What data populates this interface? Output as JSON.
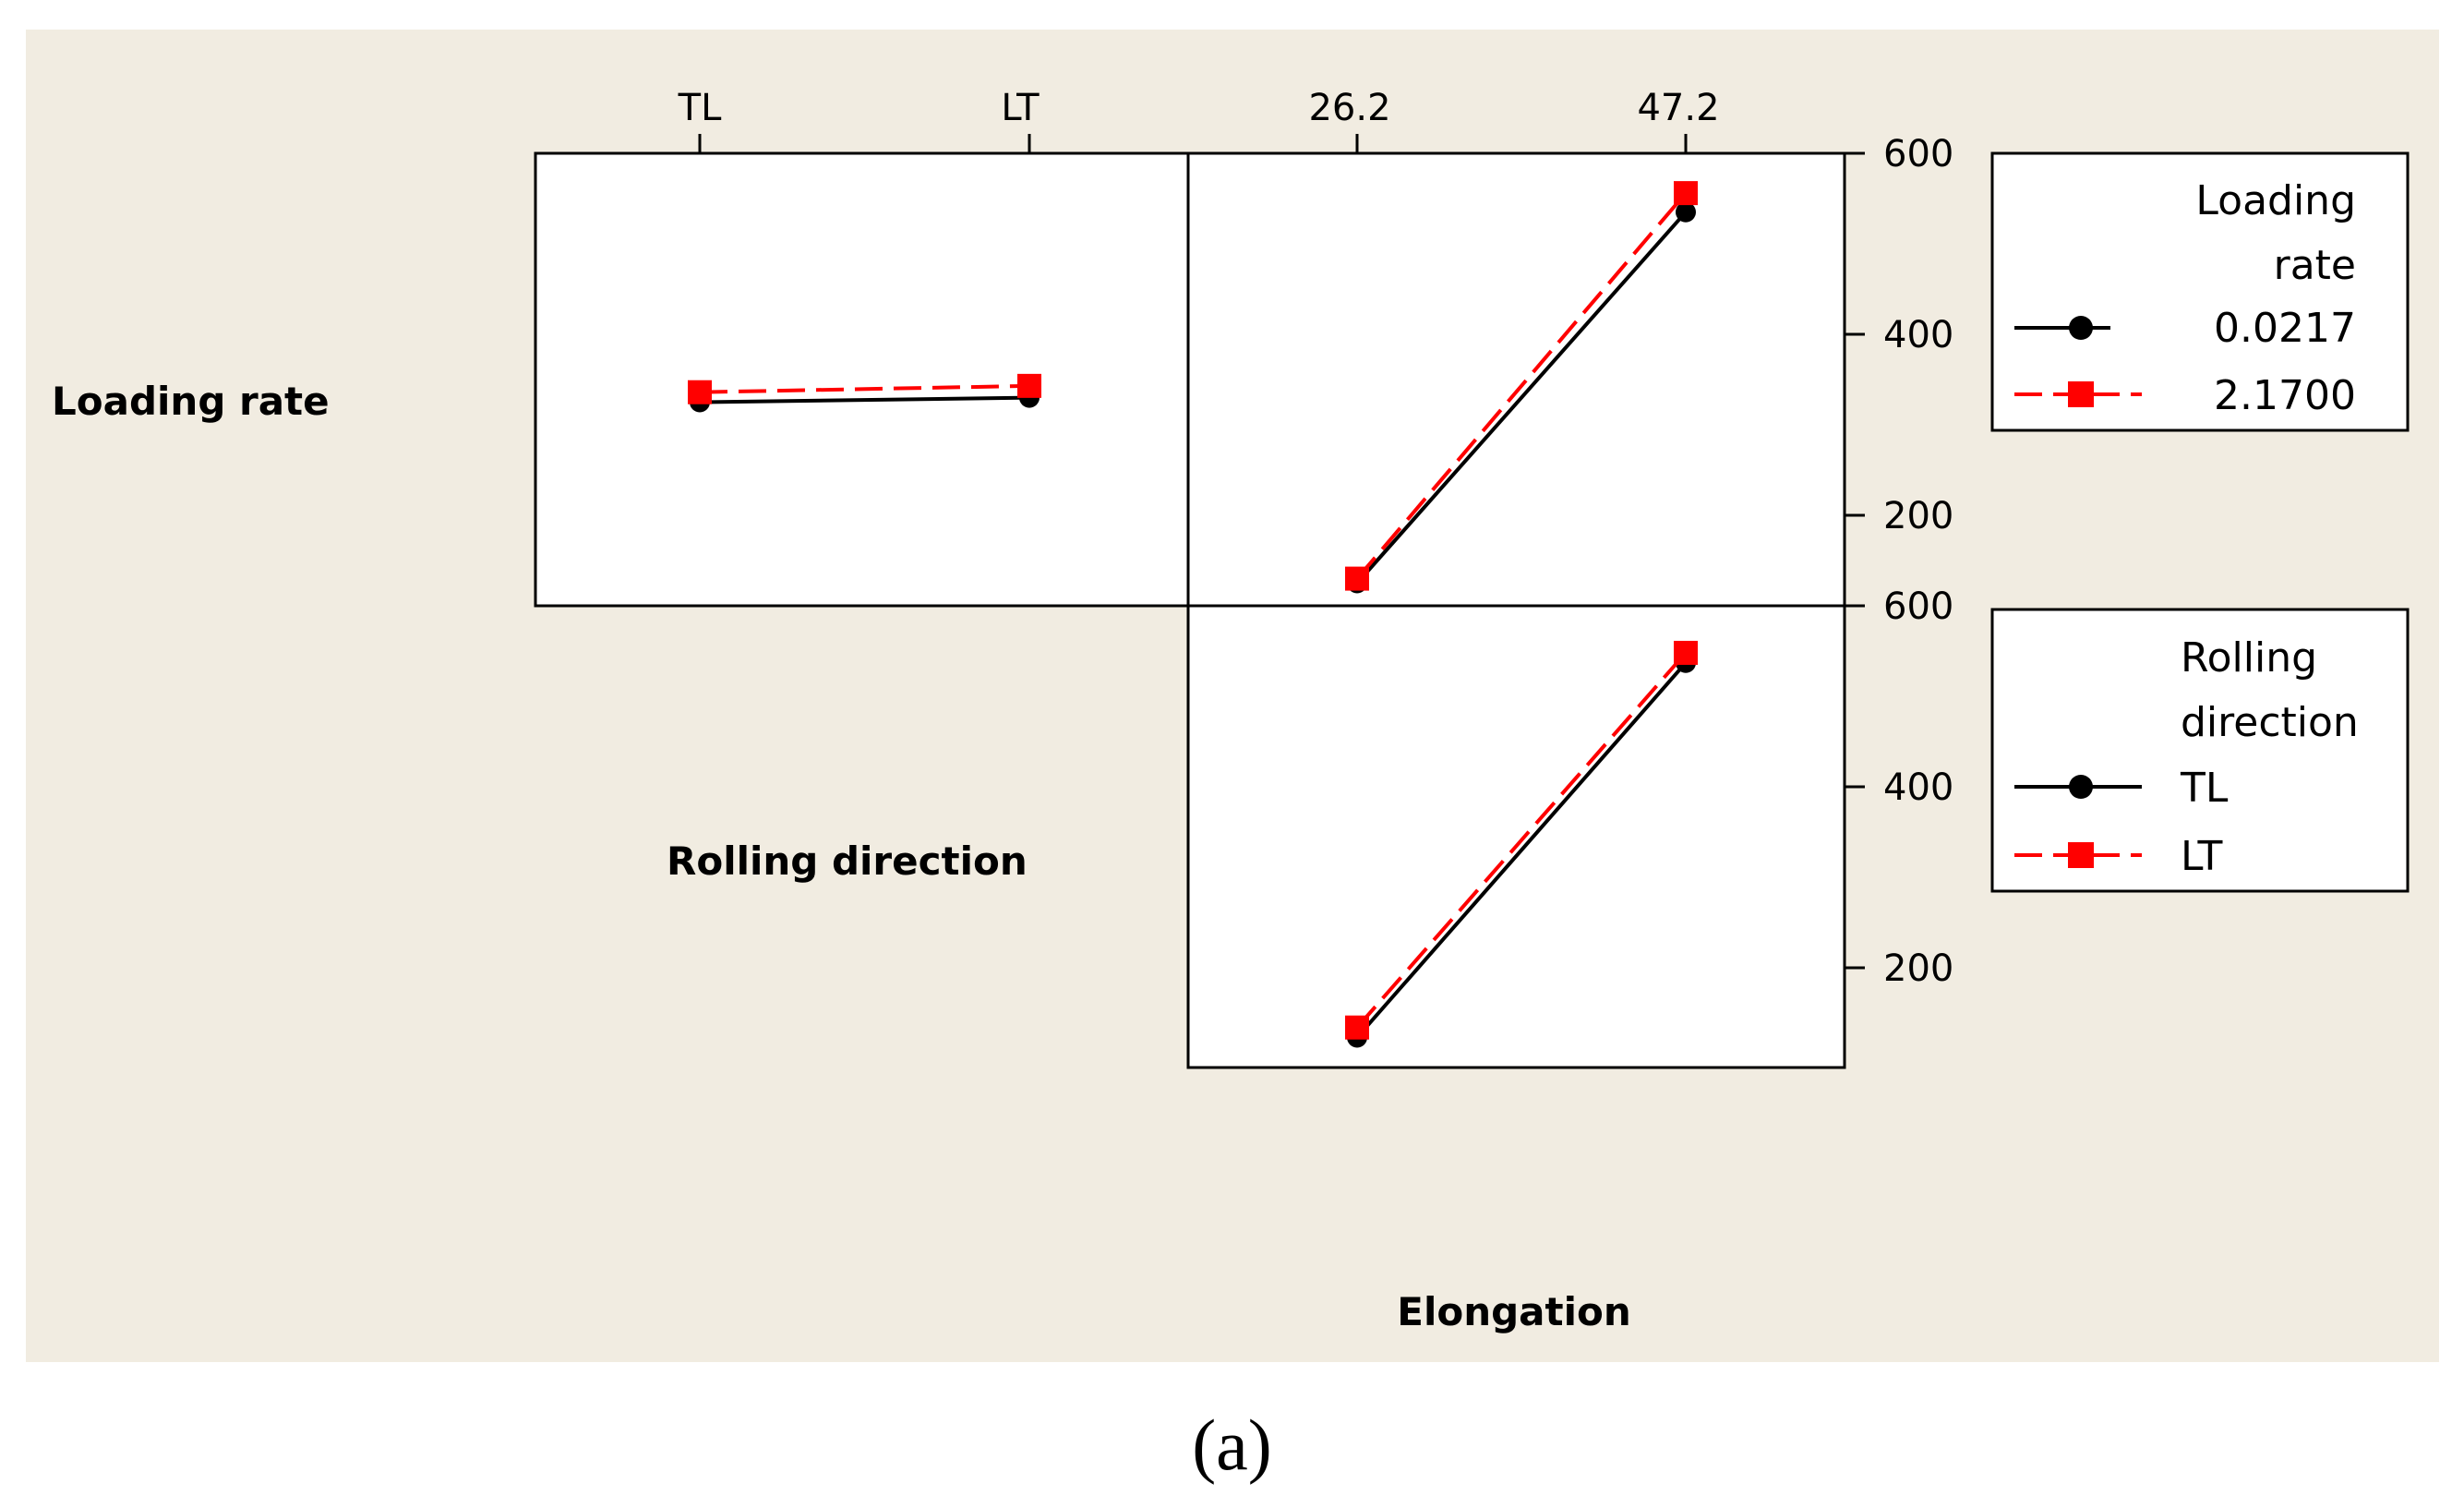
{
  "colors": {
    "background": "#f1ece1",
    "panel": "#ffffff",
    "series_a": "#000000",
    "series_b": "#ff0000"
  },
  "row_labels": [
    "Loading rate",
    "Rolling direction"
  ],
  "bottom_label": "Elongation",
  "caption": "(a)",
  "chart_data": [
    {
      "type": "line",
      "panel": "Loading rate x Rolling direction",
      "categories": [
        "TL",
        "LT"
      ],
      "series": [
        {
          "name": "0.0217",
          "values": [
            325,
            330
          ]
        },
        {
          "name": "2.1700",
          "values": [
            336,
            343
          ]
        }
      ]
    },
    {
      "type": "line",
      "panel": "Loading rate x Elongation",
      "categories": [
        "26.2",
        "47.2"
      ],
      "ylim": [
        100,
        600
      ],
      "yticks": [
        200,
        400,
        600
      ],
      "series": [
        {
          "name": "0.0217",
          "values": [
            125,
            535
          ]
        },
        {
          "name": "2.1700",
          "values": [
            130,
            556
          ]
        }
      ]
    },
    {
      "type": "line",
      "panel": "Rolling direction x Elongation",
      "categories": [
        "26.2",
        "47.2"
      ],
      "ylim": [
        100,
        600
      ],
      "yticks": [
        200,
        400,
        600
      ],
      "series": [
        {
          "name": "TL",
          "values": [
            123,
            537
          ]
        },
        {
          "name": "LT",
          "values": [
            134,
            548
          ]
        }
      ]
    }
  ],
  "legends": [
    {
      "title": [
        "Loading",
        "rate"
      ],
      "items": [
        "0.0217",
        "2.1700"
      ]
    },
    {
      "title": [
        "Rolling",
        "direction"
      ],
      "items": [
        "TL",
        "LT"
      ]
    }
  ]
}
